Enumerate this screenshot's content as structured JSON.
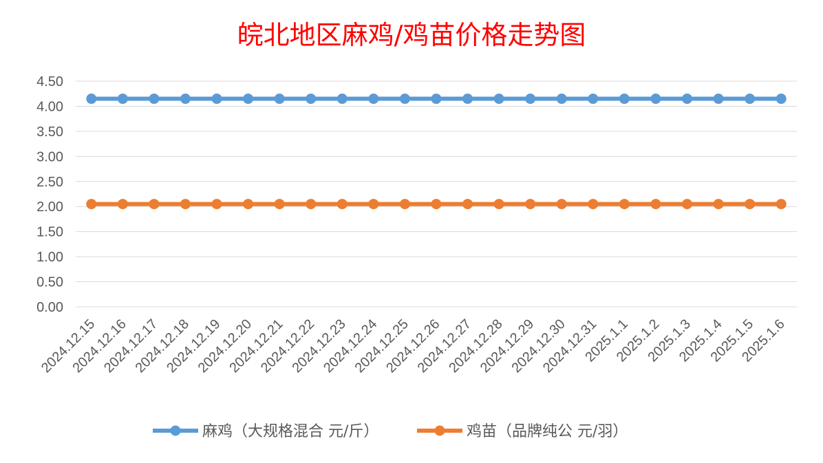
{
  "chart_data": {
    "type": "line",
    "title": "皖北地区麻鸡/鸡苗价格走势图",
    "categories": [
      "2024.12.15",
      "2024.12.16",
      "2024.12.17",
      "2024.12.18",
      "2024.12.19",
      "2024.12.20",
      "2024.12.21",
      "2024.12.22",
      "2024.12.23",
      "2024.12.24",
      "2024.12.25",
      "2024.12.26",
      "2024.12.27",
      "2024.12.28",
      "2024.12.29",
      "2024.12.30",
      "2024.12.31",
      "2025.1.1",
      "2025.1.2",
      "2025.1.3",
      "2025.1.4",
      "2025.1.5",
      "2025.1.6"
    ],
    "y_ticks": [
      "0.00",
      "0.50",
      "1.00",
      "1.50",
      "2.00",
      "2.50",
      "3.00",
      "3.50",
      "4.00",
      "4.50"
    ],
    "ylim": [
      0,
      4.5
    ],
    "grid": true,
    "legend_position": "bottom",
    "series": [
      {
        "name": "麻鸡（大规格混合 元/斤）",
        "color": "#5B9BD5",
        "values": [
          4.15,
          4.15,
          4.15,
          4.15,
          4.15,
          4.15,
          4.15,
          4.15,
          4.15,
          4.15,
          4.15,
          4.15,
          4.15,
          4.15,
          4.15,
          4.15,
          4.15,
          4.15,
          4.15,
          4.15,
          4.15,
          4.15,
          4.15
        ]
      },
      {
        "name": "鸡苗（品牌纯公 元/羽）",
        "color": "#ED7D31",
        "values": [
          2.05,
          2.05,
          2.05,
          2.05,
          2.05,
          2.05,
          2.05,
          2.05,
          2.05,
          2.05,
          2.05,
          2.05,
          2.05,
          2.05,
          2.05,
          2.05,
          2.05,
          2.05,
          2.05,
          2.05,
          2.05,
          2.05,
          2.05
        ]
      }
    ]
  }
}
